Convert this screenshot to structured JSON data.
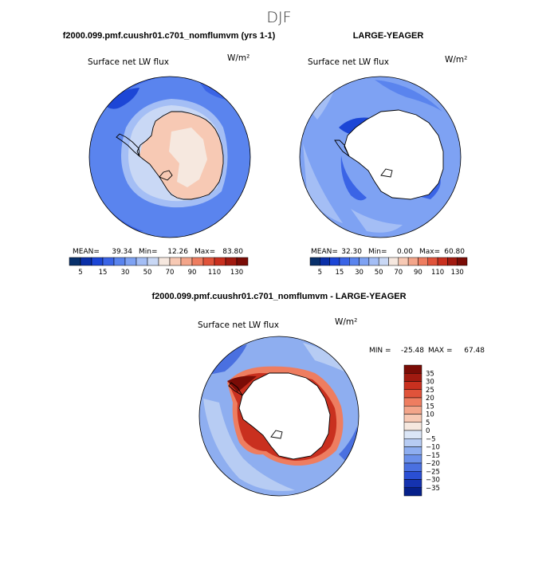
{
  "page": {
    "season": "DJF",
    "left_title": "f2000.099.pmf.cuushr01.c701_nomflumvm (yrs 1-1)",
    "right_title": "LARGE-YEAGER",
    "diff_title": "f2000.099.pmf.cuushr01.c701_nomflumvm - LARGE-YEAGER"
  },
  "chart_data": [
    {
      "type": "heatmap",
      "name": "model",
      "title": "Surface net LW flux",
      "units": "W/m²",
      "projection": "south polar stereographic",
      "stats": {
        "mean_label": "MEAN=",
        "mean": "39.34",
        "min_label": "Min=",
        "min": "12.26",
        "max_label": "Max=",
        "max": "83.80"
      },
      "colorbar": {
        "levels": [
          5,
          10,
          15,
          20,
          30,
          40,
          50,
          60,
          70,
          80,
          90,
          100,
          110,
          120,
          130
        ],
        "tick_labels": [
          "5",
          "15",
          "30",
          "50",
          "70",
          "90",
          "110",
          "130"
        ],
        "colors": [
          "#08306b",
          "#0a2fa8",
          "#1c46d6",
          "#3a64e6",
          "#5a84ee",
          "#7ea2f3",
          "#a4bef5",
          "#c9d8f5",
          "#f6e8df",
          "#f7c9b4",
          "#f3a58a",
          "#ee7d60",
          "#e0533a",
          "#c9301f",
          "#a11a10",
          "#7a0c06"
        ]
      },
      "field_description": "ocean mostly 20-40 (blue), ice-covered Antarctic continent 60-80 (light orange)"
    },
    {
      "type": "heatmap",
      "name": "observation",
      "title": "Surface net LW flux",
      "units": "W/m²",
      "projection": "south polar stereographic",
      "stats": {
        "mean_label": "MEAN=",
        "mean": "32.30",
        "min_label": "Min=",
        "min": "0.00",
        "max_label": "Max=",
        "max": "60.80"
      },
      "colorbar": {
        "levels": [
          5,
          10,
          15,
          20,
          30,
          40,
          50,
          60,
          70,
          80,
          90,
          100,
          110,
          120,
          130
        ],
        "tick_labels": [
          "5",
          "15",
          "30",
          "50",
          "70",
          "90",
          "110",
          "130"
        ],
        "colors": [
          "#08306b",
          "#0a2fa8",
          "#1c46d6",
          "#3a64e6",
          "#5a84ee",
          "#7ea2f3",
          "#a4bef5",
          "#c9d8f5",
          "#f6e8df",
          "#f7c9b4",
          "#f3a58a",
          "#ee7d60",
          "#e0533a",
          "#c9301f",
          "#a11a10",
          "#7a0c06"
        ]
      },
      "field_description": "ocean 20-40, continent masked (no data)"
    },
    {
      "type": "heatmap",
      "name": "difference",
      "title": "Surface net LW flux",
      "units": "W/m²",
      "projection": "south polar stereographic",
      "stats": {
        "min_label": "MIN =",
        "min": "-25.48",
        "max_label": "MAX =",
        "max": "67.48"
      },
      "colorbar": {
        "orientation": "vertical",
        "levels": [
          35,
          30,
          25,
          20,
          15,
          10,
          5,
          0,
          -5,
          -10,
          -15,
          -20,
          -25,
          -30,
          -35
        ],
        "tick_labels": [
          "35",
          "30",
          "25",
          "20",
          "15",
          "10",
          "5",
          "0",
          "−5",
          "−10",
          "−15",
          "−20",
          "−25",
          "−30",
          "−35"
        ],
        "colors": [
          "#7a0c06",
          "#a11a10",
          "#c9301f",
          "#e0533a",
          "#ee7d60",
          "#f3a58a",
          "#f7c9b4",
          "#f6e8df",
          "#dbe6f7",
          "#b7ccf3",
          "#8eaef0",
          "#6b90ea",
          "#4a70e0",
          "#2a4fd4",
          "#1533b0",
          "#06208a"
        ]
      },
      "field_description": "positive (red) along Antarctic coast, slightly negative (blue) over open ocean"
    }
  ]
}
